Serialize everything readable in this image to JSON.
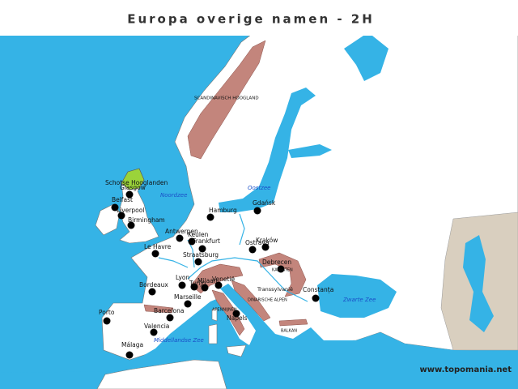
{
  "title": "Europa overige namen - 2H",
  "footer": "www.topomania.net",
  "cities": [
    "Glasgow",
    "Belfast",
    "Liverpool",
    "Birmingham",
    "Hamburg",
    "Gdańsk",
    "Antwerpen",
    "Keulen",
    "Frankfurt",
    "Le Havre",
    "Straatsburg",
    "Ostrava",
    "Kraków",
    "Debrecen",
    "Lyon",
    "Turijn",
    "Milaan",
    "Venetië",
    "Bordeaux",
    "Marseille",
    "Barcelona",
    "Porto",
    "Valencia",
    "Málaga",
    "Napels",
    "Constanța"
  ],
  "regions": [
    "Schotse Hooglanden",
    "SCANDINAVISCH HOOGLAND",
    "KARPATEN",
    "Transsylvanië",
    "DINARISCHE ALPEN",
    "APENNIJNEN",
    "BALKAN"
  ],
  "seas": [
    "Noordzee",
    "Oostzee",
    "Zwarte Zee",
    "Middellandse Zee"
  ]
}
